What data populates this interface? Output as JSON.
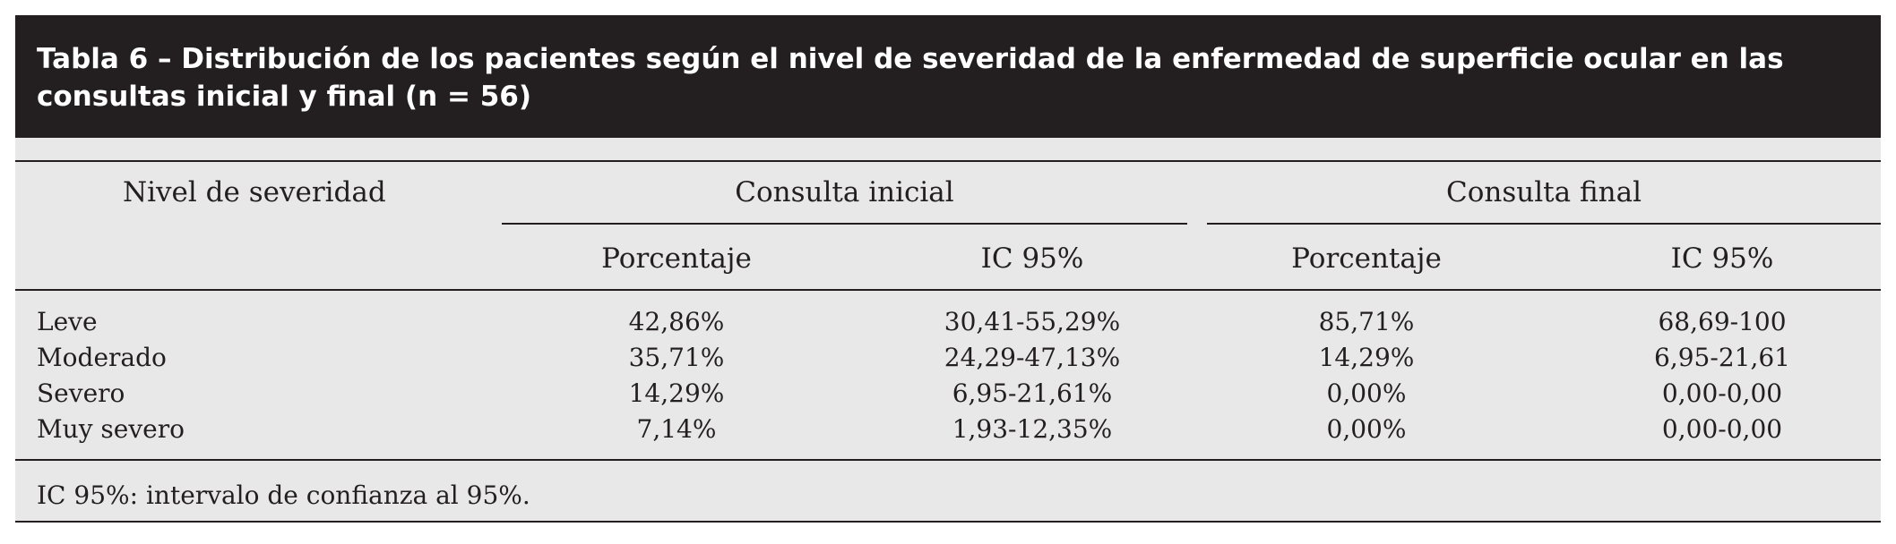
{
  "table": {
    "title_line1": "Tabla 6 – Distribución de los pacientes según el nivel de severidad de la enfermedad de superficie ocular en las",
    "title_line2": "consultas inicial y final (n = 56)",
    "header": {
      "row_label": "Nivel de severidad",
      "group1": "Consulta inicial",
      "group2": "Consulta final",
      "sub1": "Porcentaje",
      "sub2": "IC 95%",
      "sub3": "Porcentaje",
      "sub4": "IC 95%"
    },
    "rows": [
      {
        "nivel": "Leve",
        "inicial_pct": "42,86%",
        "inicial_ic": "30,41-55,29%",
        "final_pct": "85,71%",
        "final_ic": "68,69-100"
      },
      {
        "nivel": "Moderado",
        "inicial_pct": "35,71%",
        "inicial_ic": "24,29-47,13%",
        "final_pct": "14,29%",
        "final_ic": "6,95-21,61"
      },
      {
        "nivel": "Severo",
        "inicial_pct": "14,29%",
        "inicial_ic": "6,95-21,61%",
        "final_pct": "0,00%",
        "final_ic": "0,00-0,00"
      },
      {
        "nivel": "Muy severo",
        "inicial_pct": "7,14%",
        "inicial_ic": "1,93-12,35%",
        "final_pct": "0,00%",
        "final_ic": "0,00-0,00"
      }
    ],
    "footnote": "IC 95%: intervalo de confianza al 95%."
  },
  "colors": {
    "title_bg": "#231f20",
    "title_fg": "#ffffff",
    "table_bg": "#e8e8e8",
    "rule": "#231f20"
  }
}
